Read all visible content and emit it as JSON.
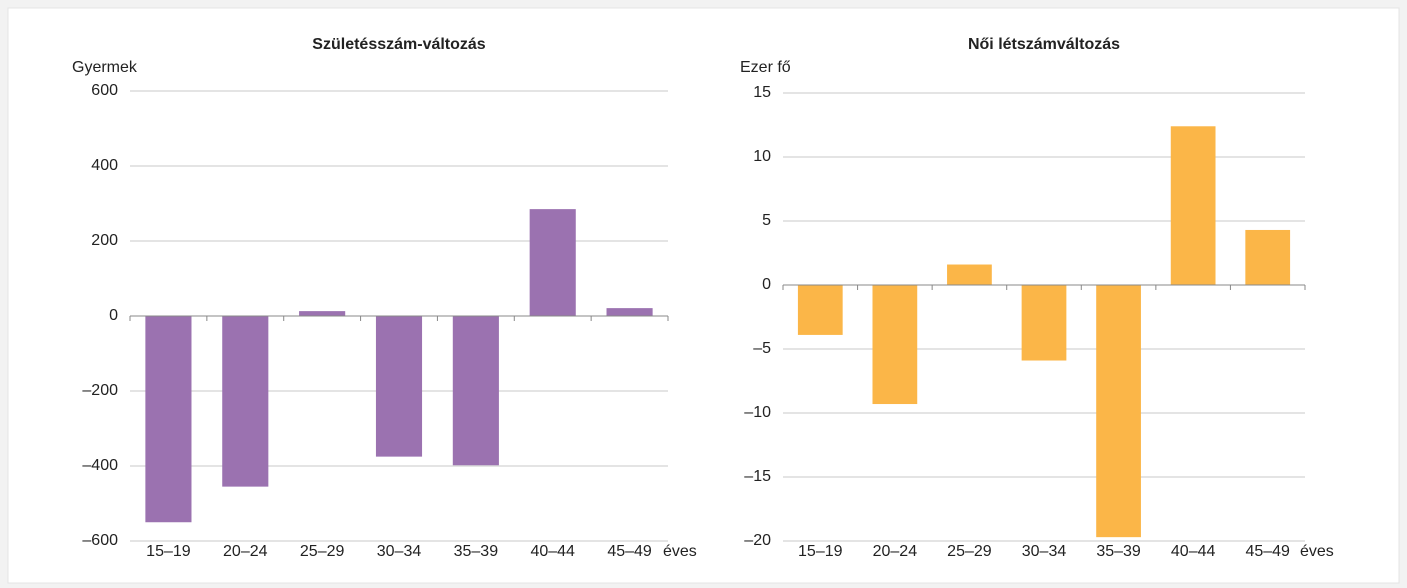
{
  "chart_data": [
    {
      "type": "bar",
      "title": "Születésszám-változás",
      "ylabel": "Gyermek",
      "xlabel": "éves",
      "categories": [
        "15–19",
        "20–24",
        "25–29",
        "30–34",
        "35–39",
        "40–44",
        "45–49"
      ],
      "values": [
        -550,
        -455,
        13,
        -375,
        -398,
        285,
        21
      ],
      "color": "#9b72b0",
      "ylim": [
        -600,
        600
      ],
      "yticks": [
        {
          "value": -600,
          "label": "–600"
        },
        {
          "value": -400,
          "label": "–400"
        },
        {
          "value": -200,
          "label": "–200"
        },
        0,
        200,
        400,
        600
      ],
      "grid": true
    },
    {
      "type": "bar",
      "title": "Női létszámváltozás",
      "ylabel": "Ezer fő",
      "xlabel": "éves",
      "categories": [
        "15–19",
        "20–24",
        "25–29",
        "30–34",
        "35–39",
        "40–44",
        "45–49"
      ],
      "values": [
        -3.9,
        -9.3,
        1.6,
        -5.9,
        -19.7,
        12.4,
        4.3
      ],
      "color": "#fbb648",
      "ylim": [
        -20,
        15
      ],
      "yticks": [
        {
          "value": -20,
          "label": "–20"
        },
        {
          "value": -15,
          "label": "–15"
        },
        {
          "value": -10,
          "label": "–10"
        },
        {
          "value": -5,
          "label": "–5"
        },
        0,
        5,
        10,
        15
      ],
      "grid": true
    }
  ]
}
